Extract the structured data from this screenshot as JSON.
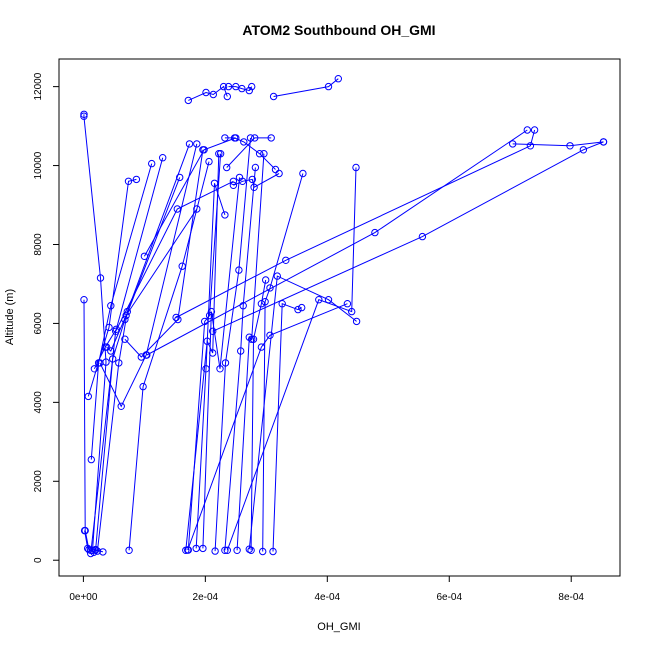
{
  "chart_data": {
    "type": "line",
    "title": "ATOM2 Southbound OH_GMI",
    "xlabel": "OH_GMI",
    "ylabel": "Altitude (m)",
    "xlim": [
      -4e-05,
      0.00088
    ],
    "ylim": [
      -400,
      12700
    ],
    "x_ticks": [
      {
        "value": 0,
        "label": "0e+00"
      },
      {
        "value": 0.0002,
        "label": "2e-04"
      },
      {
        "value": 0.0004,
        "label": "4e-04"
      },
      {
        "value": 0.0006,
        "label": "6e-04"
      },
      {
        "value": 0.0008,
        "label": "8e-04"
      }
    ],
    "y_ticks": [
      {
        "value": 0,
        "label": "0"
      },
      {
        "value": 2000,
        "label": "2000"
      },
      {
        "value": 4000,
        "label": "4000"
      },
      {
        "value": 6000,
        "label": "6000"
      },
      {
        "value": 8000,
        "label": "8000"
      },
      {
        "value": 10000,
        "label": "10000"
      },
      {
        "value": 12000,
        "label": "12000"
      }
    ],
    "series_color": "#0000ff",
    "marker": "open-circle",
    "grid": false,
    "legend": "none",
    "profiles": [
      {
        "x": [
          1e-06,
          8e-07,
          2.8e-05,
          3.7e-05,
          1.5e-05
        ],
        "y": [
          11300,
          11250,
          7150,
          5020,
          250
        ]
      },
      {
        "x": [
          1e-06,
          3e-06,
          9e-06
        ],
        "y": [
          6600,
          750,
          270
        ]
      },
      {
        "x": [
          2e-06,
          7e-06,
          1.2e-05,
          1.7e-05,
          2e-05,
          3.2e-05
        ],
        "y": [
          750,
          300,
          250,
          200,
          270,
          210
        ]
      },
      {
        "x": [
          8e-06,
          4.2e-05,
          7.4e-05,
          8.7e-05
        ],
        "y": [
          4150,
          5900,
          9600,
          9650
        ]
      },
      {
        "x": [
          1.3e-05,
          2.5e-05,
          4.5e-05,
          0.000112
        ],
        "y": [
          2550,
          5000,
          6450,
          10050
        ]
      },
      {
        "x": [
          1.8e-05,
          3.6e-05,
          5.4e-05,
          0.00013
        ],
        "y": [
          4850,
          5400,
          5850,
          10200
        ]
      },
      {
        "x": [
          2e-05,
          4.8e-05,
          6.8e-05,
          0.000158
        ],
        "y": [
          260,
          5100,
          6100,
          9700
        ]
      },
      {
        "x": [
          2.3e-05,
          5.8e-05,
          7.2e-05,
          0.000174
        ],
        "y": [
          230,
          5000,
          6300,
          10550
        ]
      },
      {
        "x": [
          2.7e-05,
          6.2e-05,
          0.000103,
          0.000186
        ],
        "y": [
          5000,
          3900,
          5200,
          10550
        ]
      },
      {
        "x": [
          3.8e-05,
          4.5e-05,
          7e-05,
          0.000186
        ],
        "y": [
          5400,
          5300,
          6200,
          8900
        ]
      },
      {
        "x": [
          6.8e-05,
          9.5e-05,
          0.000155,
          0.000196
        ],
        "y": [
          5600,
          5150,
          6100,
          10400
        ]
      },
      {
        "x": [
          7.5e-05,
          9.8e-05,
          0.000162,
          0.000206
        ],
        "y": [
          250,
          4400,
          7450,
          10100
        ]
      },
      {
        "x": [
          1.2e-05,
          5.3e-05,
          0.000154,
          0.000246
        ],
        "y": [
          170,
          5800,
          8900,
          9600
        ]
      },
      {
        "x": [
          0.0001,
          0.000198,
          0.00025
        ],
        "y": [
          7700,
          10400,
          10700
        ]
      },
      {
        "x": [
          0.000172,
          0.000201,
          0.000213,
          0.00023,
          0.000236
        ],
        "y": [
          11650,
          11850,
          11800,
          12000,
          11750
        ]
      },
      {
        "x": [
          0.000238,
          0.00025,
          0.00026,
          0.000272,
          0.000276
        ],
        "y": [
          12000,
          12000,
          11950,
          11900,
          12000
        ]
      },
      {
        "x": [
          0.000312,
          0.000402,
          0.000418
        ],
        "y": [
          11750,
          12000,
          12200
        ]
      },
      {
        "x": [
          0.000232,
          0.000248,
          0.000263,
          0.000289,
          0.000315
        ],
        "y": [
          10700,
          10700,
          10600,
          10300,
          9900
        ]
      },
      {
        "x": [
          0.000246,
          0.000261,
          0.000277,
          0.00028,
          0.000321
        ],
        "y": [
          9500,
          9600,
          9650,
          9450,
          9800
        ]
      },
      {
        "x": [
          0.000172,
          0.000199,
          0.000207,
          0.000225
        ],
        "y": [
          260,
          6050,
          6200,
          10300
        ]
      },
      {
        "x": [
          0.000168,
          0.000203,
          0.000212,
          0.000222
        ],
        "y": [
          250,
          5550,
          5250,
          10300
        ]
      },
      {
        "x": [
          0.000185,
          0.000201,
          0.000215,
          0.000232
        ],
        "y": [
          300,
          4850,
          9550,
          8750
        ]
      },
      {
        "x": [
          0.000196,
          0.00021,
          0.000224,
          0.000256
        ],
        "y": [
          300,
          6300,
          4850,
          9700
        ]
      },
      {
        "x": [
          0.000216,
          0.000233,
          0.000255,
          0.000274
        ],
        "y": [
          230,
          5000,
          7350,
          10700
        ]
      },
      {
        "x": [
          0.000232,
          0.000258,
          0.000262,
          0.000282
        ],
        "y": [
          250,
          5300,
          6450,
          9950
        ]
      },
      {
        "x": [
          0.000252,
          0.000272,
          0.000276,
          0.000296
        ],
        "y": [
          250,
          5650,
          5600,
          10300
        ]
      },
      {
        "x": [
          0.000275,
          0.000279,
          0.000292,
          0.000299
        ],
        "y": [
          250,
          5600,
          6500,
          7100
        ]
      },
      {
        "x": [
          0.000294,
          0.000298,
          0.000306,
          0.00036
        ],
        "y": [
          220,
          6550,
          6900,
          9800
        ]
      },
      {
        "x": [
          0.000311,
          0.000326,
          0.000352,
          0.000358
        ],
        "y": [
          220,
          6500,
          6350,
          6400
        ]
      },
      {
        "x": [
          0.000171,
          0.000292,
          0.000306,
          0.000433
        ],
        "y": [
          260,
          5400,
          5700,
          6500
        ]
      },
      {
        "x": [
          0.000236,
          0.000386,
          0.00044,
          0.000447
        ],
        "y": [
          250,
          6600,
          6300,
          9950
        ]
      },
      {
        "x": [
          0.000272,
          0.000318,
          0.000402,
          0.000448
        ],
        "y": [
          280,
          7200,
          6600,
          6050
        ]
      },
      {
        "x": [
          0.000152,
          0.000332,
          0.000733,
          0.00074
        ],
        "y": [
          6150,
          7600,
          10500,
          10900
        ]
      },
      {
        "x": [
          0.000704,
          0.000798,
          0.000853
        ],
        "y": [
          10550,
          10500,
          10600
        ]
      },
      {
        "x": [
          0.000212,
          0.000556,
          0.00082,
          0.000853
        ],
        "y": [
          5800,
          8200,
          10400,
          10600
        ]
      },
      {
        "x": [
          0.000104,
          0.000478,
          0.000728
        ],
        "y": [
          5200,
          8300,
          10900
        ]
      },
      {
        "x": [
          0.000235,
          0.000281,
          0.000308
        ],
        "y": [
          9950,
          10700,
          10700
        ]
      }
    ]
  }
}
